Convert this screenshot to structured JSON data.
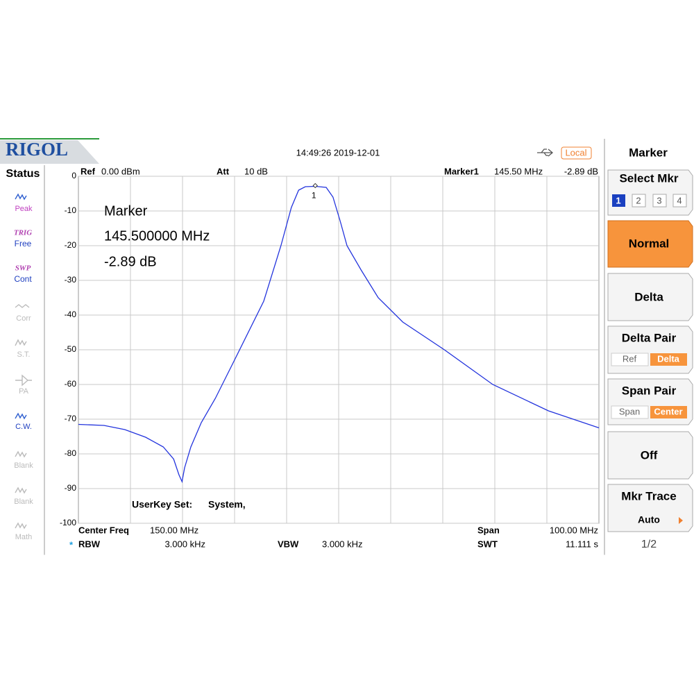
{
  "header": {
    "brand": "RIGOL",
    "datetime": "14:49:26 2019-12-01",
    "local": "Local"
  },
  "status": {
    "title": "Status",
    "trig": "TRIG",
    "trig_mode": "Free",
    "swp": "SWP",
    "swp_mode": "Cont",
    "items": [
      "Peak",
      "Corr",
      "S.T.",
      "PA",
      "C.W.",
      "Blank",
      "Blank",
      "Math"
    ]
  },
  "top_bar": {
    "ref_label": "Ref",
    "ref": "0.00 dBm",
    "att_label": "Att",
    "att": "10 dB",
    "marker_label": "Marker1",
    "marker_freq": "145.50 MHz",
    "marker_amp": "-2.89 dB"
  },
  "marker_readout": [
    "Marker",
    "145.500000 MHz",
    "-2.89 dB"
  ],
  "userkey": [
    "UserKey Set:",
    "System,"
  ],
  "footer": {
    "center_label": "Center Freq",
    "center": "150.00 MHz",
    "span_label": "Span",
    "span": "100.00 MHz",
    "star": "*",
    "rbw_label": "RBW",
    "rbw": "3.000 kHz",
    "vbw_label": "VBW",
    "vbw": "3.000 kHz",
    "swt_label": "SWT",
    "swt": "11.111 s"
  },
  "menu": {
    "title": "Marker",
    "select_mkr": {
      "label": "Select Mkr",
      "options": [
        "1",
        "2",
        "3",
        "4"
      ]
    },
    "normal": "Normal",
    "delta": "Delta",
    "delta_pair": {
      "label": "Delta Pair",
      "options": [
        "Ref",
        "Delta"
      ]
    },
    "span_pair": {
      "label": "Span Pair",
      "options": [
        "Span",
        "Center"
      ]
    },
    "off": "Off",
    "mkr_trace": {
      "label": "Mkr Trace",
      "value": "Auto"
    },
    "page": "1/2"
  },
  "chart_data": {
    "type": "line",
    "x": [
      100,
      104.9,
      108.9,
      112.9,
      116.3,
      118.3,
      119.3,
      119.9,
      120.4,
      121.6,
      123.6,
      126.3,
      130.3,
      135.6,
      138.9,
      140.9,
      142.3,
      143.6,
      145.5,
      147.6,
      148.9,
      150.3,
      151.6,
      154.3,
      157.6,
      162.3,
      170.3,
      179.6,
      190.3,
      200
    ],
    "series": [
      {
        "color": "#2233dd",
        "values": [
          -71.5,
          -71.8,
          -73,
          -75.2,
          -78,
          -81.5,
          -86,
          -88,
          -84,
          -78,
          -71,
          -64,
          -52,
          -36,
          -20,
          -9,
          -4,
          -3,
          -2.89,
          -3.2,
          -6,
          -13,
          -20,
          -27,
          -35,
          -42,
          -50,
          -60,
          -67.6,
          -72.5
        ]
      }
    ],
    "marker": {
      "x": 145.5,
      "y": -2.89,
      "label": "1"
    },
    "xlim": [
      100,
      200
    ],
    "ylim": [
      -100,
      0
    ],
    "yticks": [
      0,
      -10,
      -20,
      -30,
      -40,
      -50,
      -60,
      -70,
      -80,
      -90,
      -100
    ],
    "grid": true
  }
}
